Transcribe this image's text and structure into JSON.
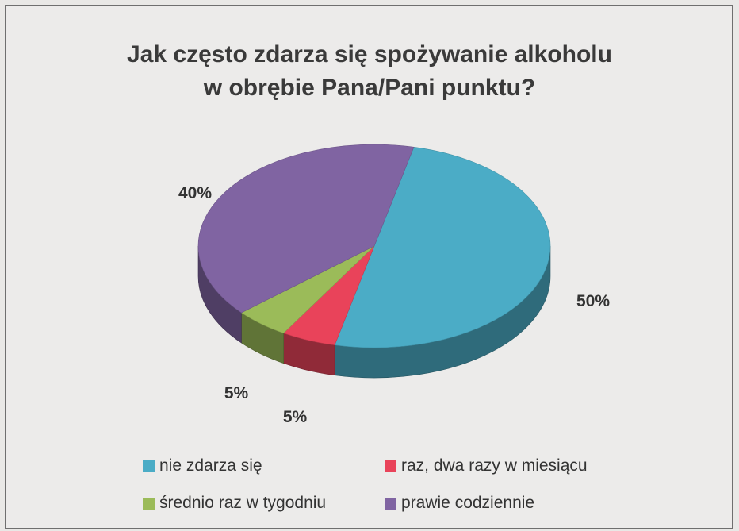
{
  "chart_data": {
    "type": "pie",
    "title_lines": [
      "Jak często zdarza się spożywanie alkoholu",
      "w obrębie Pana/Pani  punktu?"
    ],
    "slices": [
      {
        "label": "nie zdarza się",
        "value": 50,
        "percent_label": "50%",
        "color": "#4bacc6"
      },
      {
        "label": "raz, dwa razy w miesiącu",
        "value": 5,
        "percent_label": "5%",
        "color": "#e9435a"
      },
      {
        "label": "średnio raz w tygodniu",
        "value": 5,
        "percent_label": "5%",
        "color": "#9bbb59"
      },
      {
        "label": "prawie codziennie",
        "value": 40,
        "percent_label": "40%",
        "color": "#8064a2"
      }
    ],
    "legend_position": "bottom"
  }
}
